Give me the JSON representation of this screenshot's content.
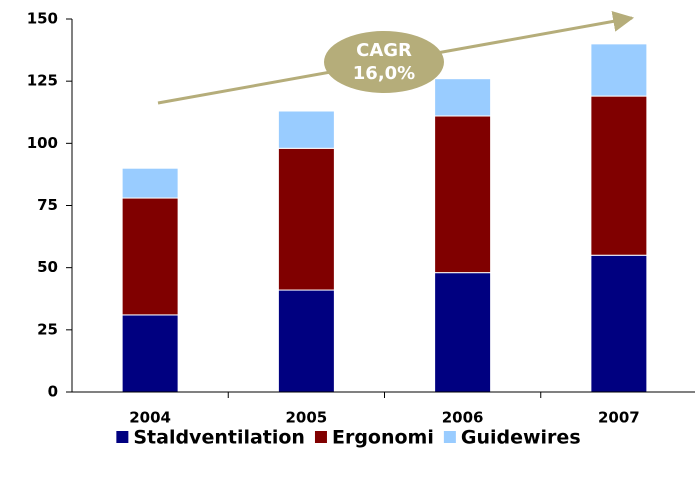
{
  "chart_data": {
    "type": "stacked_bar",
    "categories": [
      "2004",
      "2005",
      "2006",
      "2007"
    ],
    "series": [
      {
        "name": "Staldventilation",
        "color": "#000080",
        "values": [
          31,
          41,
          48,
          55
        ]
      },
      {
        "name": "Ergonomi",
        "color": "#800000",
        "values": [
          47,
          57,
          63,
          64
        ]
      },
      {
        "name": "Guidewires",
        "color": "#99ccff",
        "values": [
          12,
          15,
          15,
          21
        ]
      }
    ],
    "ylim": [
      0,
      150
    ],
    "yticks": [
      0,
      25,
      50,
      75,
      100,
      125,
      150
    ],
    "annotation": [
      "CAGR",
      "16,0%"
    ],
    "legend": "bottom"
  }
}
